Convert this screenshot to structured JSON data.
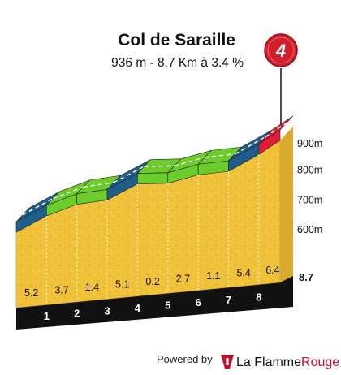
{
  "title": "Col de Saraille",
  "subtitle": "936 m - 8.7 Km à 3.4 %",
  "category_badge": "4",
  "footer": {
    "powered_by": "Powered by",
    "brand_part1": "La Flamme",
    "brand_part2": "Rouge",
    "logo_icon": "flame-rouge-icon"
  },
  "colors": {
    "fill": "#f0c23a",
    "blue": "#1f5d8a",
    "green": "#6ccc2b",
    "red": "#e01b38",
    "base": "#111111"
  },
  "chart_data": {
    "type": "area",
    "title": "Col de Saraille",
    "subtitle": "936 m - 8.7 Km à 3.4 %",
    "x_unit": "km",
    "y_unit": "m",
    "xlim": [
      0,
      8.7
    ],
    "ylim": [
      500,
      940
    ],
    "y_ticks": [
      "600m",
      "700m",
      "800m",
      "900m"
    ],
    "y_tick_values": [
      600,
      700,
      800,
      900
    ],
    "km_labels": [
      "1",
      "2",
      "3",
      "4",
      "5",
      "6",
      "7",
      "8"
    ],
    "total_distance_label": "8.7",
    "segments": [
      {
        "km_start": 0,
        "km_end": 1,
        "gradient": "5.2",
        "color": "blue"
      },
      {
        "km_start": 1,
        "km_end": 2,
        "gradient": "3.7",
        "color": "green"
      },
      {
        "km_start": 2,
        "km_end": 3,
        "gradient": "1.4",
        "color": "green"
      },
      {
        "km_start": 3,
        "km_end": 4,
        "gradient": "5.1",
        "color": "blue"
      },
      {
        "km_start": 4,
        "km_end": 5,
        "gradient": "0.2",
        "color": "green"
      },
      {
        "km_start": 5,
        "km_end": 6,
        "gradient": "2.7",
        "color": "green"
      },
      {
        "km_start": 6,
        "km_end": 7,
        "gradient": "1.1",
        "color": "green"
      },
      {
        "km_start": 7,
        "km_end": 8,
        "gradient": "5.4",
        "color": "blue"
      },
      {
        "km_start": 8,
        "km_end": 8.7,
        "gradient": "6.4",
        "color": "red"
      }
    ],
    "x": [
      0,
      1,
      2,
      3,
      4,
      5,
      6,
      7,
      8,
      8.7
    ],
    "elevation": [
      641,
      693,
      730,
      744,
      795,
      797,
      824,
      835,
      889,
      934
    ]
  }
}
